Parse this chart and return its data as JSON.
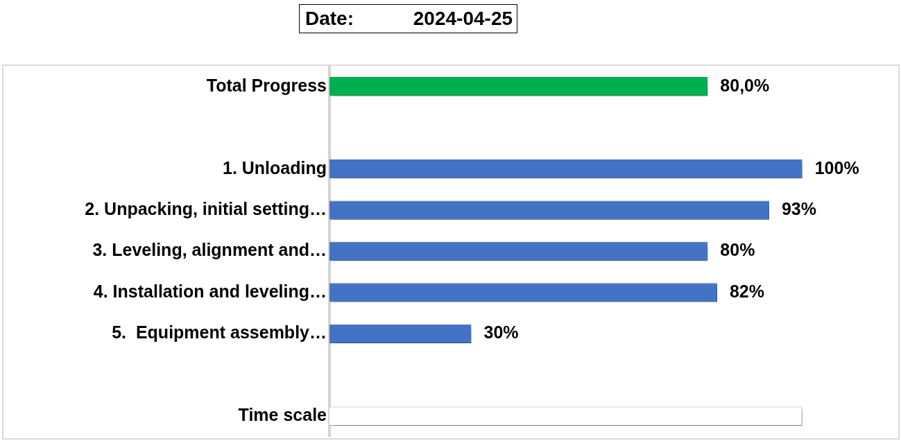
{
  "chart_data": {
    "type": "bar",
    "orientation": "horizontal",
    "title": "Date: 2024-04-25",
    "categories": [
      "Total Progress",
      null,
      "1. Unloading",
      "2. Unpacking, initial setting…",
      "3. Leveling, alignment and…",
      "4. Installation and leveling…",
      "5.  Equipment assembly…",
      null,
      "Time scale"
    ],
    "values": [
      80,
      null,
      100,
      93,
      80,
      82,
      30,
      null,
      100
    ],
    "colors": [
      "#00b050",
      "#4472c4",
      "#4472c4",
      "#4472c4",
      "#4472c4",
      "#4472c4",
      "#4472c4",
      "#ffffff",
      "#ffffff"
    ],
    "value_labels": [
      "80,0%",
      null,
      "100%",
      "93%",
      "80%",
      "82%",
      "30%",
      null,
      null
    ],
    "xlim": [
      0,
      120
    ],
    "tick_labels": "y"
  }
}
